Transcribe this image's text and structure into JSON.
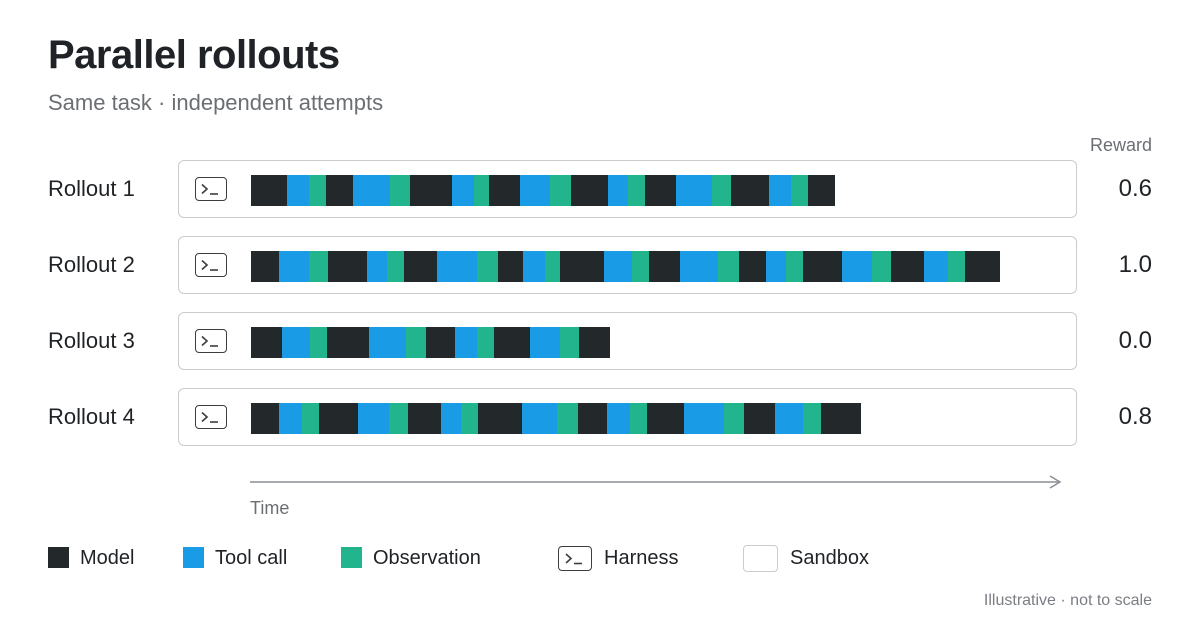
{
  "header": {
    "title": "Parallel rollouts",
    "subtitle": "Same task · independent attempts",
    "reward_label": "Reward"
  },
  "colors": {
    "model": "#23292b",
    "tool_call": "#1a9be6",
    "observation": "#22b48c",
    "sandbox_border": "#c9ccd0"
  },
  "rollouts": [
    {
      "label": "Rollout 1",
      "reward": "0.6",
      "segments": [
        [
          "model",
          36
        ],
        [
          "tool",
          22
        ],
        [
          "obs",
          17
        ],
        [
          "model",
          27
        ],
        [
          "tool",
          37
        ],
        [
          "obs",
          20
        ],
        [
          "model",
          42
        ],
        [
          "tool",
          22
        ],
        [
          "obs",
          15
        ],
        [
          "model",
          31
        ],
        [
          "tool",
          30
        ],
        [
          "obs",
          21
        ],
        [
          "model",
          37
        ],
        [
          "tool",
          20
        ],
        [
          "obs",
          17
        ],
        [
          "model",
          31
        ],
        [
          "tool",
          36
        ],
        [
          "obs",
          19
        ],
        [
          "model",
          38
        ],
        [
          "tool",
          22
        ],
        [
          "obs",
          17
        ],
        [
          "model",
          27
        ]
      ]
    },
    {
      "label": "Rollout 2",
      "reward": "1.0",
      "segments": [
        [
          "model",
          28
        ],
        [
          "tool",
          30
        ],
        [
          "obs",
          19
        ],
        [
          "model",
          39
        ],
        [
          "tool",
          20
        ],
        [
          "obs",
          17
        ],
        [
          "model",
          33
        ],
        [
          "tool",
          40
        ],
        [
          "obs",
          21
        ],
        [
          "model",
          25
        ],
        [
          "tool",
          22
        ],
        [
          "obs",
          15
        ],
        [
          "model",
          44
        ],
        [
          "tool",
          28
        ],
        [
          "obs",
          17
        ],
        [
          "model",
          31
        ],
        [
          "tool",
          38
        ],
        [
          "obs",
          21
        ],
        [
          "model",
          27
        ],
        [
          "tool",
          20
        ],
        [
          "obs",
          17
        ],
        [
          "model",
          39
        ],
        [
          "tool",
          30
        ],
        [
          "obs",
          19
        ],
        [
          "model",
          33
        ],
        [
          "tool",
          24
        ],
        [
          "obs",
          17
        ],
        [
          "model",
          35
        ]
      ]
    },
    {
      "label": "Rollout 3",
      "reward": "0.0",
      "segments": [
        [
          "model",
          31
        ],
        [
          "tool",
          28
        ],
        [
          "obs",
          17
        ],
        [
          "model",
          42
        ],
        [
          "tool",
          37
        ],
        [
          "obs",
          20
        ],
        [
          "model",
          29
        ],
        [
          "tool",
          22
        ],
        [
          "obs",
          17
        ],
        [
          "model",
          36
        ],
        [
          "tool",
          30
        ],
        [
          "obs",
          19
        ],
        [
          "model",
          31
        ]
      ]
    },
    {
      "label": "Rollout 4",
      "reward": "0.8",
      "segments": [
        [
          "model",
          28
        ],
        [
          "tool",
          23
        ],
        [
          "obs",
          17
        ],
        [
          "model",
          39
        ],
        [
          "tool",
          31
        ],
        [
          "obs",
          19
        ],
        [
          "model",
          33
        ],
        [
          "tool",
          20
        ],
        [
          "obs",
          17
        ],
        [
          "model",
          44
        ],
        [
          "tool",
          35
        ],
        [
          "obs",
          21
        ],
        [
          "model",
          29
        ],
        [
          "tool",
          23
        ],
        [
          "obs",
          17
        ],
        [
          "model",
          37
        ],
        [
          "tool",
          40
        ],
        [
          "obs",
          20
        ],
        [
          "model",
          31
        ],
        [
          "tool",
          28
        ],
        [
          "obs",
          18
        ],
        [
          "model",
          40
        ]
      ]
    }
  ],
  "axis": {
    "label": "Time"
  },
  "legend": {
    "model": "Model",
    "tool_call": "Tool call",
    "observation": "Observation",
    "harness": "Harness",
    "sandbox": "Sandbox"
  },
  "footnote": "Illustrative · not to scale"
}
